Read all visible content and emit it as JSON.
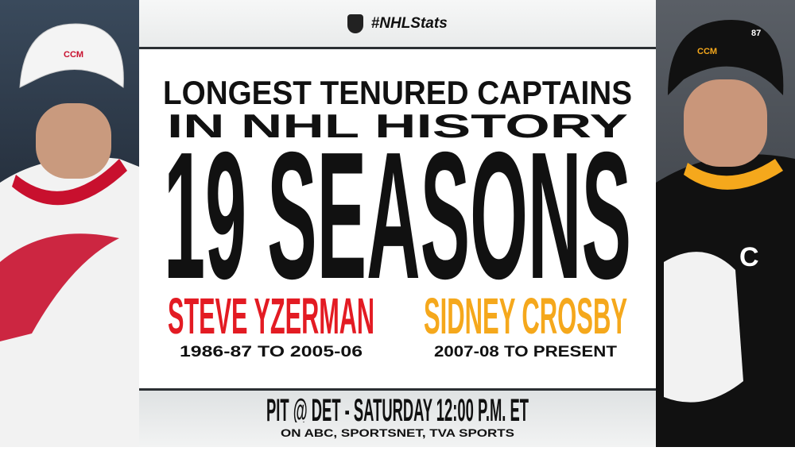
{
  "header": {
    "hashtag": "#NHLStats",
    "logo": "NHL"
  },
  "title": {
    "line1": "LONGEST TENURED CAPTAINS",
    "line2": "IN NHL HISTORY"
  },
  "stat": "19 SEASONS",
  "players": [
    {
      "name": "STEVE YZERMAN",
      "span": "1986-87 TO 2005-06",
      "color": "#e31b23",
      "jersey_letters": "CCM"
    },
    {
      "name": "SIDNEY CROSBY",
      "span": "2007-08 TO PRESENT",
      "color": "#f5a81c",
      "jersey_letters": "C",
      "helmet": "CCM",
      "number": "87"
    }
  ],
  "footer": {
    "game": "PIT @ DET - SATURDAY 12:00 P.M. ET",
    "broadcast": "ON ABC, SPORTSNET, TVA SPORTS"
  }
}
